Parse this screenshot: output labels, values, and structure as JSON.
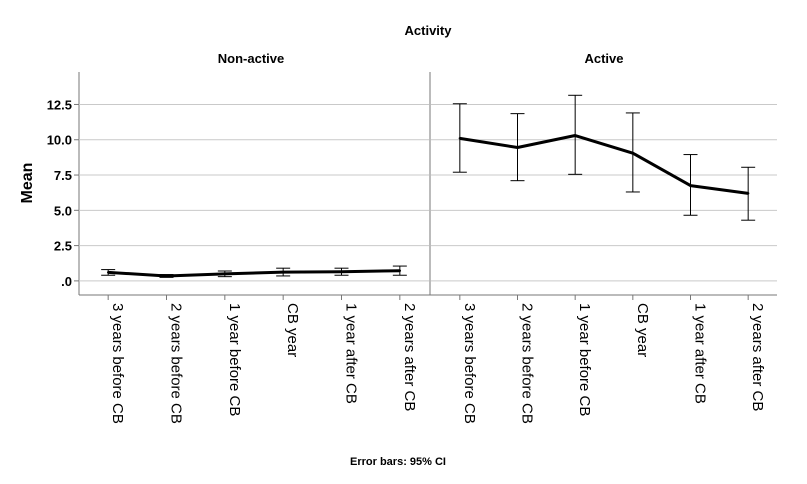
{
  "chart_data": {
    "type": "line",
    "title": "Activity",
    "ylabel": "Mean",
    "xlabel": "",
    "ylim": [
      -1,
      14.8
    ],
    "yticks": [
      0,
      2.5,
      5,
      7.5,
      10,
      12.5
    ],
    "ytick_labels": [
      ".0",
      "2.5",
      "5.0",
      "7.5",
      "10.0",
      "12.5"
    ],
    "grid": "horizontal",
    "footnote": "Error bars: 95% CI",
    "categories": [
      "3 years before CB",
      "2 years before CB",
      "1 year before CB",
      "CB year",
      "1 year after CB",
      "2 years after CB"
    ],
    "panels": [
      {
        "title": "Non-active",
        "mean": [
          0.6,
          0.35,
          0.5,
          0.62,
          0.65,
          0.72
        ],
        "ci_low": [
          0.4,
          0.25,
          0.3,
          0.35,
          0.4,
          0.4
        ],
        "ci_high": [
          0.8,
          0.45,
          0.7,
          0.9,
          0.9,
          1.05
        ]
      },
      {
        "title": "Active",
        "mean": [
          10.1,
          9.45,
          10.3,
          9.05,
          6.75,
          6.2
        ],
        "ci_low": [
          7.7,
          7.1,
          7.55,
          6.3,
          4.65,
          4.3
        ],
        "ci_high": [
          12.55,
          11.85,
          13.15,
          11.9,
          8.95,
          8.05
        ]
      }
    ]
  }
}
